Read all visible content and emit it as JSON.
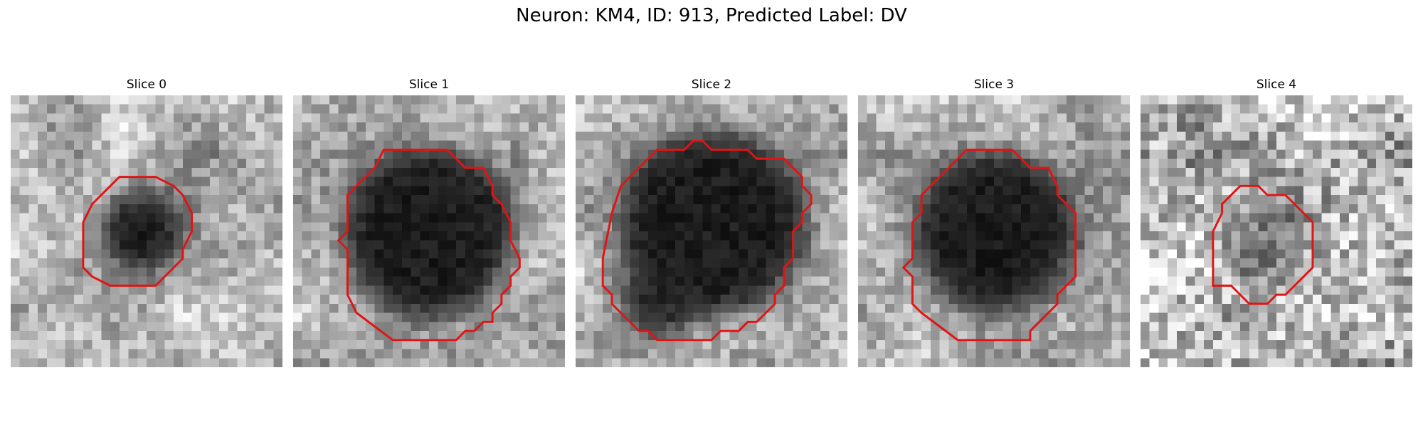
{
  "figure": {
    "title": "Neuron: KM4, ID: 913, Predicted Label: DV"
  },
  "colors": {
    "contour": "#e01414",
    "background": "#ffffff"
  },
  "slices": [
    {
      "label": "Slice 0",
      "contour": [
        [
          12,
          9
        ],
        [
          16,
          9
        ],
        [
          18,
          10
        ],
        [
          19,
          11
        ],
        [
          20,
          13
        ],
        [
          20,
          15
        ],
        [
          19,
          17
        ],
        [
          19,
          18
        ],
        [
          17,
          20
        ],
        [
          16,
          21
        ],
        [
          11,
          21
        ],
        [
          9,
          20
        ],
        [
          8,
          19
        ],
        [
          8,
          14
        ],
        [
          9,
          12
        ],
        [
          10,
          11
        ],
        [
          11,
          10
        ]
      ],
      "darkness": [
        [
          14.5,
          15,
          4.5,
          1.0
        ]
      ]
    },
    {
      "label": "Slice 1",
      "contour": [
        [
          10,
          6
        ],
        [
          17,
          6
        ],
        [
          18,
          7
        ],
        [
          19,
          8
        ],
        [
          21,
          8
        ],
        [
          22,
          10
        ],
        [
          22,
          11
        ],
        [
          23,
          12
        ],
        [
          24,
          14
        ],
        [
          24,
          16
        ],
        [
          25,
          18
        ],
        [
          25,
          19
        ],
        [
          24,
          20
        ],
        [
          24,
          21
        ],
        [
          23,
          22
        ],
        [
          23,
          23
        ],
        [
          22,
          24
        ],
        [
          22,
          25
        ],
        [
          21,
          25
        ],
        [
          20,
          26
        ],
        [
          19,
          26
        ],
        [
          18,
          27
        ],
        [
          11,
          27
        ],
        [
          7,
          24
        ],
        [
          6,
          22
        ],
        [
          6,
          17
        ],
        [
          5,
          16
        ],
        [
          6,
          15
        ],
        [
          6,
          11
        ],
        [
          9,
          8
        ]
      ],
      "darkness": [
        [
          15,
          15,
          9.5,
          1.0
        ]
      ]
    },
    {
      "label": "Slice 2",
      "contour": [
        [
          13,
          5
        ],
        [
          14,
          5
        ],
        [
          15,
          6
        ],
        [
          19,
          6
        ],
        [
          20,
          7
        ],
        [
          23,
          7
        ],
        [
          24,
          8
        ],
        [
          25,
          9
        ],
        [
          25,
          10
        ],
        [
          26,
          11
        ],
        [
          26,
          12
        ],
        [
          25,
          13
        ],
        [
          25,
          14
        ],
        [
          24,
          15
        ],
        [
          24,
          18
        ],
        [
          23,
          19
        ],
        [
          23,
          21
        ],
        [
          22,
          22
        ],
        [
          22,
          23
        ],
        [
          21,
          24
        ],
        [
          20,
          25
        ],
        [
          19,
          25
        ],
        [
          18,
          26
        ],
        [
          16,
          26
        ],
        [
          15,
          27
        ],
        [
          9,
          27
        ],
        [
          8,
          26
        ],
        [
          7,
          26
        ],
        [
          5,
          24
        ],
        [
          4,
          23
        ],
        [
          4,
          22
        ],
        [
          3,
          21
        ],
        [
          3,
          18
        ],
        [
          4,
          13
        ],
        [
          5,
          10
        ],
        [
          7,
          8
        ],
        [
          9,
          6
        ],
        [
          12,
          6
        ]
      ],
      "darkness": [
        [
          15,
          14,
          10.5,
          1.0
        ],
        [
          9,
          23,
          3.5,
          0.9
        ]
      ]
    },
    {
      "label": "Slice 3",
      "contour": [
        [
          12,
          6
        ],
        [
          17,
          6
        ],
        [
          18,
          7
        ],
        [
          19,
          8
        ],
        [
          21,
          8
        ],
        [
          22,
          10
        ],
        [
          22,
          11
        ],
        [
          23,
          12
        ],
        [
          24,
          13
        ],
        [
          24,
          20
        ],
        [
          23,
          21
        ],
        [
          22,
          22
        ],
        [
          22,
          23
        ],
        [
          19,
          26
        ],
        [
          19,
          27
        ],
        [
          11,
          27
        ],
        [
          7,
          24
        ],
        [
          6,
          23
        ],
        [
          6,
          20
        ],
        [
          5,
          19
        ],
        [
          6,
          18
        ],
        [
          6,
          14
        ],
        [
          7,
          13
        ],
        [
          7,
          11
        ],
        [
          10,
          8
        ],
        [
          11,
          7
        ]
      ],
      "darkness": [
        [
          15,
          15,
          9,
          1.0
        ]
      ]
    },
    {
      "label": "Slice 4",
      "contour": [
        [
          11,
          10
        ],
        [
          13,
          10
        ],
        [
          14,
          11
        ],
        [
          16,
          11
        ],
        [
          17,
          12
        ],
        [
          18,
          13
        ],
        [
          19,
          14
        ],
        [
          19,
          19
        ],
        [
          18,
          20
        ],
        [
          17,
          21
        ],
        [
          16,
          22
        ],
        [
          15,
          22
        ],
        [
          14,
          23
        ],
        [
          12,
          23
        ],
        [
          11,
          22
        ],
        [
          10,
          21
        ],
        [
          8,
          21
        ],
        [
          8,
          15
        ],
        [
          9,
          13
        ],
        [
          9,
          12
        ],
        [
          10,
          11
        ]
      ],
      "darkness": [
        [
          13.5,
          16,
          4,
          0.45
        ]
      ]
    }
  ]
}
